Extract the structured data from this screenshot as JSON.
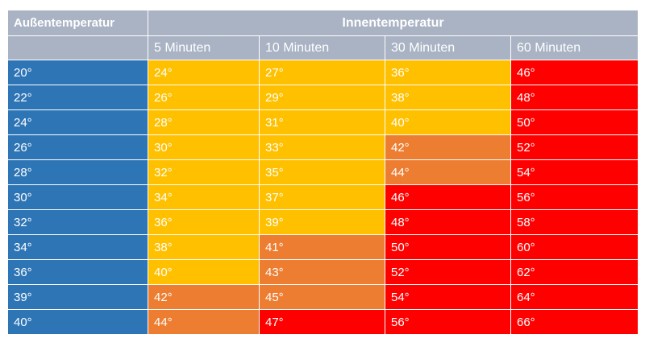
{
  "header": {
    "outside_label": "Außentemperatur",
    "inside_label": "Innentemperatur",
    "times": [
      "5 Minuten",
      "10 Minuten",
      "30 Minuten",
      "60 Minuten"
    ]
  },
  "colors": {
    "blue": "#2e75b6",
    "yellow": "#ffc000",
    "orange": "#ed7d31",
    "red": "#ff0000",
    "header_gray": "#a9b3c4"
  },
  "rows": [
    {
      "outside": "20°",
      "cells": [
        {
          "v": "24°",
          "c": "yellow"
        },
        {
          "v": "27°",
          "c": "yellow"
        },
        {
          "v": "36°",
          "c": "yellow"
        },
        {
          "v": "46°",
          "c": "red"
        }
      ]
    },
    {
      "outside": "22°",
      "cells": [
        {
          "v": "26°",
          "c": "yellow"
        },
        {
          "v": "29°",
          "c": "yellow"
        },
        {
          "v": "38°",
          "c": "yellow"
        },
        {
          "v": "48°",
          "c": "red"
        }
      ]
    },
    {
      "outside": "24°",
      "cells": [
        {
          "v": "28°",
          "c": "yellow"
        },
        {
          "v": "31°",
          "c": "yellow"
        },
        {
          "v": "40°",
          "c": "yellow"
        },
        {
          "v": "50°",
          "c": "red"
        }
      ]
    },
    {
      "outside": "26°",
      "cells": [
        {
          "v": "30°",
          "c": "yellow"
        },
        {
          "v": "33°",
          "c": "yellow"
        },
        {
          "v": "42°",
          "c": "orange"
        },
        {
          "v": "52°",
          "c": "red"
        }
      ]
    },
    {
      "outside": "28°",
      "cells": [
        {
          "v": "32°",
          "c": "yellow"
        },
        {
          "v": "35°",
          "c": "yellow"
        },
        {
          "v": "44°",
          "c": "orange"
        },
        {
          "v": "54°",
          "c": "red"
        }
      ]
    },
    {
      "outside": "30°",
      "cells": [
        {
          "v": "34°",
          "c": "yellow"
        },
        {
          "v": "37°",
          "c": "yellow"
        },
        {
          "v": "46°",
          "c": "red"
        },
        {
          "v": "56°",
          "c": "red"
        }
      ]
    },
    {
      "outside": "32°",
      "cells": [
        {
          "v": "36°",
          "c": "yellow"
        },
        {
          "v": "39°",
          "c": "yellow"
        },
        {
          "v": "48°",
          "c": "red"
        },
        {
          "v": "58°",
          "c": "red"
        }
      ]
    },
    {
      "outside": "34°",
      "cells": [
        {
          "v": "38°",
          "c": "yellow"
        },
        {
          "v": "41°",
          "c": "orange"
        },
        {
          "v": "50°",
          "c": "red"
        },
        {
          "v": "60°",
          "c": "red"
        }
      ]
    },
    {
      "outside": "36°",
      "cells": [
        {
          "v": "40°",
          "c": "yellow"
        },
        {
          "v": "43°",
          "c": "orange"
        },
        {
          "v": "52°",
          "c": "red"
        },
        {
          "v": "62°",
          "c": "red"
        }
      ]
    },
    {
      "outside": "39°",
      "cells": [
        {
          "v": "42°",
          "c": "orange"
        },
        {
          "v": "45°",
          "c": "orange"
        },
        {
          "v": "54°",
          "c": "red"
        },
        {
          "v": "64°",
          "c": "red"
        }
      ]
    },
    {
      "outside": "40°",
      "cells": [
        {
          "v": "44°",
          "c": "orange"
        },
        {
          "v": "47°",
          "c": "red"
        },
        {
          "v": "56°",
          "c": "red"
        },
        {
          "v": "66°",
          "c": "red"
        }
      ]
    }
  ]
}
